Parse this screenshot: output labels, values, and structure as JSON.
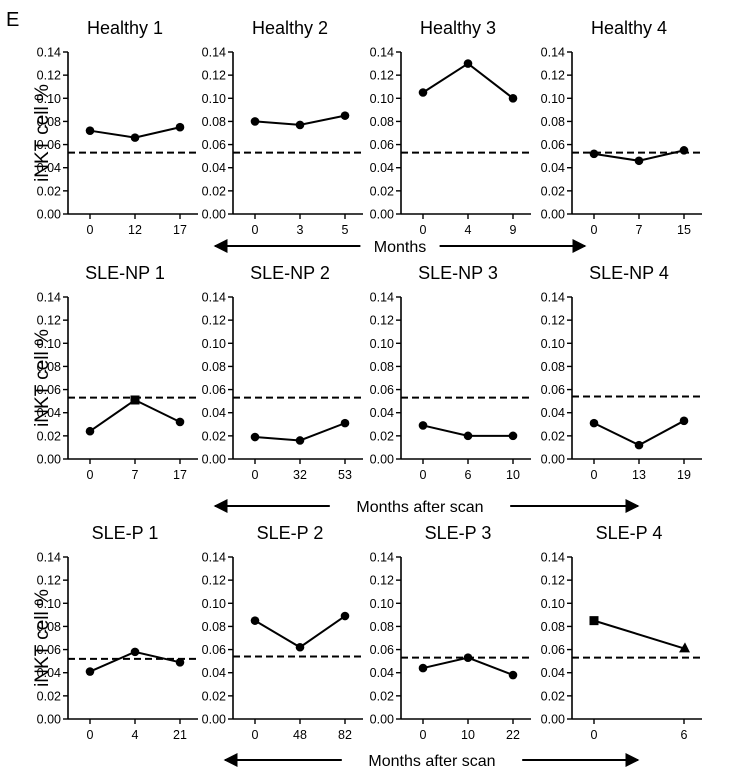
{
  "figure": {
    "panel_label": "E",
    "y_axis_label": "iNKT cell %",
    "y_ticks": [
      "0.00",
      "0.02",
      "0.04",
      "0.06",
      "0.08",
      "0.10",
      "0.12",
      "0.14"
    ],
    "row_axis_labels": [
      "Months",
      "Months after scan",
      "Months after scan"
    ]
  },
  "chart_data": [
    {
      "type": "line",
      "title": "Healthy 1",
      "categories": [
        "0",
        "12",
        "17"
      ],
      "values": [
        0.072,
        0.066,
        0.075
      ],
      "ylim": [
        0,
        0.14
      ],
      "reference_line": 0.053,
      "ylabel": "iNKT cell %",
      "markers": [
        "circle",
        "circle",
        "circle"
      ]
    },
    {
      "type": "line",
      "title": "Healthy 2",
      "categories": [
        "0",
        "3",
        "5"
      ],
      "values": [
        0.08,
        0.077,
        0.085
      ],
      "ylim": [
        0,
        0.14
      ],
      "reference_line": 0.053,
      "markers": [
        "circle",
        "circle",
        "circle"
      ]
    },
    {
      "type": "line",
      "title": "Healthy 3",
      "categories": [
        "0",
        "4",
        "9"
      ],
      "values": [
        0.105,
        0.13,
        0.1
      ],
      "ylim": [
        0,
        0.14
      ],
      "reference_line": 0.053,
      "markers": [
        "circle",
        "circle",
        "circle"
      ]
    },
    {
      "type": "line",
      "title": "Healthy 4",
      "categories": [
        "0",
        "7",
        "15"
      ],
      "values": [
        0.052,
        0.046,
        0.055
      ],
      "ylim": [
        0,
        0.14
      ],
      "reference_line": 0.053,
      "markers": [
        "circle",
        "circle",
        "circle"
      ]
    },
    {
      "type": "line",
      "title": "SLE-NP 1",
      "categories": [
        "0",
        "7",
        "17"
      ],
      "values": [
        0.024,
        0.051,
        0.032
      ],
      "ylim": [
        0,
        0.14
      ],
      "reference_line": 0.053,
      "ylabel": "iNKT cell %",
      "markers": [
        "circle",
        "square",
        "circle"
      ]
    },
    {
      "type": "line",
      "title": "SLE-NP 2",
      "categories": [
        "0",
        "32",
        "53"
      ],
      "values": [
        0.019,
        0.016,
        0.031
      ],
      "ylim": [
        0,
        0.14
      ],
      "reference_line": 0.053,
      "markers": [
        "circle",
        "circle",
        "circle"
      ]
    },
    {
      "type": "line",
      "title": "SLE-NP 3",
      "categories": [
        "0",
        "6",
        "10"
      ],
      "values": [
        0.029,
        0.02,
        0.02
      ],
      "ylim": [
        0,
        0.14
      ],
      "reference_line": 0.053,
      "markers": [
        "circle",
        "circle",
        "circle"
      ]
    },
    {
      "type": "line",
      "title": "SLE-NP 4",
      "categories": [
        "0",
        "13",
        "19"
      ],
      "values": [
        0.031,
        0.012,
        0.033
      ],
      "ylim": [
        0,
        0.14
      ],
      "reference_line": 0.054,
      "markers": [
        "circle",
        "circle",
        "circle"
      ]
    },
    {
      "type": "line",
      "title": "SLE-P 1",
      "categories": [
        "0",
        "4",
        "21"
      ],
      "values": [
        0.041,
        0.058,
        0.049
      ],
      "ylim": [
        0,
        0.14
      ],
      "reference_line": 0.052,
      "ylabel": "iNKT cell %",
      "markers": [
        "circle",
        "circle",
        "circle"
      ]
    },
    {
      "type": "line",
      "title": "SLE-P 2",
      "categories": [
        "0",
        "48",
        "82"
      ],
      "values": [
        0.085,
        0.062,
        0.089
      ],
      "ylim": [
        0,
        0.14
      ],
      "reference_line": 0.054,
      "markers": [
        "circle",
        "circle",
        "circle"
      ]
    },
    {
      "type": "line",
      "title": "SLE-P 3",
      "categories": [
        "0",
        "10",
        "22"
      ],
      "values": [
        0.044,
        0.053,
        0.038
      ],
      "ylim": [
        0,
        0.14
      ],
      "reference_line": 0.053,
      "markers": [
        "circle",
        "circle",
        "circle"
      ]
    },
    {
      "type": "line",
      "title": "SLE-P 4",
      "categories": [
        "0",
        "6"
      ],
      "values": [
        0.085,
        0.061
      ],
      "ylim": [
        0,
        0.14
      ],
      "reference_line": 0.053,
      "markers": [
        "square",
        "triangle"
      ]
    }
  ]
}
